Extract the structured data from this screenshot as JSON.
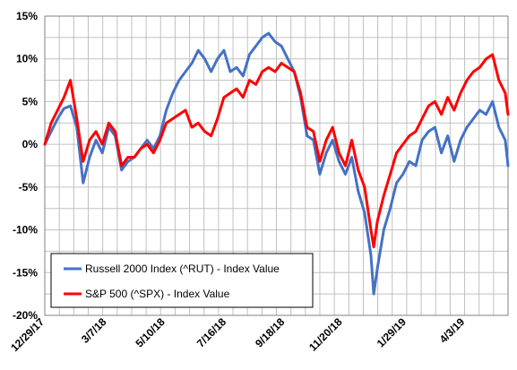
{
  "chart_data": {
    "type": "line",
    "title": "",
    "xlabel": "",
    "ylabel": "",
    "ylim": [
      -20,
      15
    ],
    "y_ticks": [
      "15%",
      "10%",
      "5%",
      "0%",
      "-5%",
      "-10%",
      "-15%",
      "-20%"
    ],
    "y_tick_values": [
      15,
      10,
      5,
      0,
      -5,
      -10,
      -15,
      -20
    ],
    "x_range": [
      "2017-12-29",
      "2019-05-20"
    ],
    "x_ticks": [
      "12/29/17",
      "3/7/18",
      "5/10/18",
      "7/16/18",
      "9/18/18",
      "11/20/18",
      "1/29/19",
      "4/3/19"
    ],
    "x_tick_dates": [
      "2017-12-29",
      "2018-03-07",
      "2018-05-10",
      "2018-07-16",
      "2018-09-18",
      "2018-11-20",
      "2019-01-29",
      "2019-04-03"
    ],
    "grid": true,
    "legend_position": "bottom-left",
    "series": [
      {
        "name": "Russell 2000 Index (^RUT) - Index Value",
        "color": "#4472C4",
        "x": [
          "2017-12-29",
          "2018-01-05",
          "2018-01-12",
          "2018-01-19",
          "2018-01-26",
          "2018-02-02",
          "2018-02-09",
          "2018-02-16",
          "2018-02-23",
          "2018-03-02",
          "2018-03-09",
          "2018-03-16",
          "2018-03-23",
          "2018-03-30",
          "2018-04-06",
          "2018-04-13",
          "2018-04-20",
          "2018-04-27",
          "2018-05-04",
          "2018-05-11",
          "2018-05-18",
          "2018-05-25",
          "2018-06-01",
          "2018-06-08",
          "2018-06-15",
          "2018-06-22",
          "2018-06-29",
          "2018-07-06",
          "2018-07-13",
          "2018-07-20",
          "2018-07-27",
          "2018-08-03",
          "2018-08-10",
          "2018-08-17",
          "2018-08-24",
          "2018-08-31",
          "2018-09-07",
          "2018-09-14",
          "2018-09-21",
          "2018-09-28",
          "2018-10-05",
          "2018-10-12",
          "2018-10-19",
          "2018-10-26",
          "2018-11-02",
          "2018-11-09",
          "2018-11-16",
          "2018-11-23",
          "2018-11-30",
          "2018-12-07",
          "2018-12-14",
          "2018-12-21",
          "2018-12-24",
          "2018-12-28",
          "2019-01-04",
          "2019-01-11",
          "2019-01-18",
          "2019-01-25",
          "2019-02-01",
          "2019-02-08",
          "2019-02-15",
          "2019-02-22",
          "2019-03-01",
          "2019-03-08",
          "2019-03-15",
          "2019-03-22",
          "2019-03-29",
          "2019-04-05",
          "2019-04-12",
          "2019-04-19",
          "2019-04-26",
          "2019-05-03",
          "2019-05-10",
          "2019-05-17",
          "2019-05-20"
        ],
        "y": [
          0.0,
          1.5,
          3.0,
          4.2,
          4.5,
          2.0,
          -4.5,
          -1.5,
          0.5,
          -1.0,
          2.0,
          1.0,
          -3.0,
          -2.0,
          -1.5,
          -0.5,
          0.5,
          -0.5,
          1.0,
          4.0,
          6.0,
          7.5,
          8.5,
          9.5,
          11.0,
          10.0,
          8.5,
          10.0,
          11.0,
          8.5,
          9.0,
          8.0,
          10.5,
          11.5,
          12.5,
          13.0,
          12.0,
          11.5,
          10.0,
          8.5,
          5.5,
          1.0,
          0.5,
          -3.5,
          -1.0,
          0.5,
          -2.0,
          -3.5,
          -1.5,
          -5.5,
          -8.0,
          -13.0,
          -17.5,
          -14.5,
          -10.0,
          -7.5,
          -4.5,
          -3.5,
          -2.0,
          -2.5,
          0.5,
          1.5,
          2.0,
          -1.0,
          1.0,
          -2.0,
          0.5,
          2.0,
          3.0,
          4.0,
          3.5,
          5.0,
          2.0,
          0.5,
          -2.5
        ]
      },
      {
        "name": "S&P 500 (^SPX) - Index Value",
        "color": "#FF0000",
        "x": [
          "2017-12-29",
          "2018-01-05",
          "2018-01-12",
          "2018-01-19",
          "2018-01-26",
          "2018-02-02",
          "2018-02-09",
          "2018-02-16",
          "2018-02-23",
          "2018-03-02",
          "2018-03-09",
          "2018-03-16",
          "2018-03-23",
          "2018-03-30",
          "2018-04-06",
          "2018-04-13",
          "2018-04-20",
          "2018-04-27",
          "2018-05-04",
          "2018-05-11",
          "2018-05-18",
          "2018-05-25",
          "2018-06-01",
          "2018-06-08",
          "2018-06-15",
          "2018-06-22",
          "2018-06-29",
          "2018-07-06",
          "2018-07-13",
          "2018-07-20",
          "2018-07-27",
          "2018-08-03",
          "2018-08-10",
          "2018-08-17",
          "2018-08-24",
          "2018-08-31",
          "2018-09-07",
          "2018-09-14",
          "2018-09-21",
          "2018-09-28",
          "2018-10-05",
          "2018-10-12",
          "2018-10-19",
          "2018-10-26",
          "2018-11-02",
          "2018-11-09",
          "2018-11-16",
          "2018-11-23",
          "2018-11-30",
          "2018-12-07",
          "2018-12-14",
          "2018-12-21",
          "2018-12-24",
          "2018-12-28",
          "2019-01-04",
          "2019-01-11",
          "2019-01-18",
          "2019-01-25",
          "2019-02-01",
          "2019-02-08",
          "2019-02-15",
          "2019-02-22",
          "2019-03-01",
          "2019-03-08",
          "2019-03-15",
          "2019-03-22",
          "2019-03-29",
          "2019-04-05",
          "2019-04-12",
          "2019-04-19",
          "2019-04-26",
          "2019-05-03",
          "2019-05-10",
          "2019-05-17",
          "2019-05-20"
        ],
        "y": [
          0.0,
          2.5,
          4.0,
          5.5,
          7.5,
          3.0,
          -2.0,
          0.5,
          1.5,
          0.0,
          2.5,
          1.5,
          -2.5,
          -1.5,
          -1.5,
          -0.5,
          0.0,
          -1.0,
          0.5,
          2.5,
          3.0,
          3.5,
          4.0,
          2.0,
          2.5,
          1.5,
          1.0,
          3.0,
          5.5,
          6.0,
          6.5,
          5.5,
          7.5,
          7.0,
          8.5,
          9.0,
          8.5,
          9.5,
          9.0,
          8.5,
          6.0,
          2.0,
          1.5,
          -2.0,
          0.5,
          2.0,
          -1.0,
          -2.5,
          0.5,
          -3.0,
          -5.0,
          -10.0,
          -12.0,
          -9.0,
          -6.0,
          -3.5,
          -1.0,
          0.0,
          1.0,
          1.5,
          3.0,
          4.5,
          5.0,
          3.5,
          5.5,
          4.0,
          6.0,
          7.5,
          8.5,
          9.0,
          10.0,
          10.5,
          7.5,
          6.0,
          3.5
        ]
      }
    ]
  }
}
